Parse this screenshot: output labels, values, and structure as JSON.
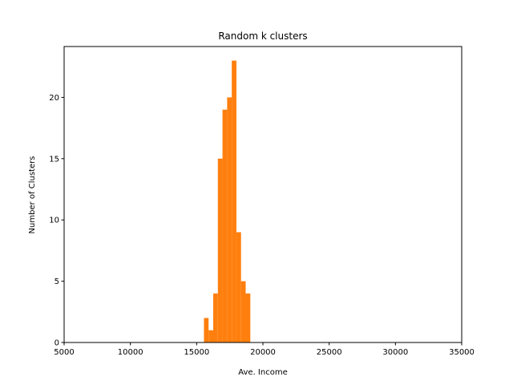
{
  "chart_data": {
    "type": "bar",
    "title": "Random k clusters",
    "xlabel": "Ave. Income",
    "ylabel": "Number of Clusters",
    "xlim": [
      5000,
      35000
    ],
    "ylim": [
      0,
      24.15
    ],
    "xticks": [
      5000,
      10000,
      15000,
      20000,
      25000,
      30000,
      35000
    ],
    "yticks": [
      0,
      5,
      10,
      15,
      20
    ],
    "grid": false,
    "color": "#ff7f0e",
    "bin_width": 350,
    "bins": [
      {
        "start": 15550,
        "count": 2
      },
      {
        "start": 15900,
        "count": 1
      },
      {
        "start": 16250,
        "count": 4
      },
      {
        "start": 16600,
        "count": 15
      },
      {
        "start": 16950,
        "count": 19
      },
      {
        "start": 17300,
        "count": 20
      },
      {
        "start": 17650,
        "count": 23
      },
      {
        "start": 18000,
        "count": 9
      },
      {
        "start": 18350,
        "count": 5
      },
      {
        "start": 18700,
        "count": 4
      }
    ]
  }
}
